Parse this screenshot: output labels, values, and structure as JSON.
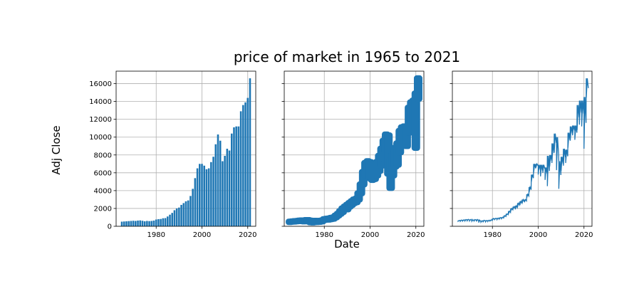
{
  "figure": {
    "title": "price of market in 1965 to 2021",
    "xlabel": "Date",
    "ylabel": "Adj Close"
  },
  "colors": {
    "series": "#1f77b4",
    "grid": "#b0b0b0",
    "axes": "#000000"
  },
  "chart_data": [
    {
      "type": "bar",
      "title": "",
      "xlim": [
        1962.5,
        2023.5
      ],
      "ylim": [
        0,
        17400
      ],
      "xticks": [
        1980,
        2000,
        2020
      ],
      "yticks": [
        0,
        2000,
        4000,
        6000,
        8000,
        10000,
        12000,
        14000,
        16000
      ],
      "grid": true,
      "series": [
        {
          "x": [
            1965,
            1966,
            1967,
            1968,
            1969,
            1970,
            1971,
            1972,
            1973,
            1974,
            1975,
            1976,
            1977,
            1978,
            1979,
            1980,
            1981,
            1982,
            1983,
            1984,
            1985,
            1986,
            1987,
            1988,
            1989,
            1990,
            1991,
            1992,
            1993,
            1994,
            1995,
            1996,
            1997,
            1998,
            1999,
            2000,
            2001,
            2002,
            2003,
            2004,
            2005,
            2006,
            2007,
            2008,
            2009,
            2010,
            2011,
            2012,
            2013,
            2014,
            2015,
            2016,
            2017,
            2018,
            2019,
            2020,
            2021
          ],
          "y": [
            520,
            540,
            560,
            580,
            600,
            620,
            600,
            640,
            660,
            620,
            560,
            600,
            580,
            600,
            640,
            760,
            800,
            820,
            900,
            920,
            1100,
            1300,
            1500,
            1800,
            2000,
            2100,
            2400,
            2600,
            2800,
            2900,
            3400,
            4200,
            5400,
            6500,
            7000,
            7000,
            6800,
            6400,
            6500,
            7200,
            7800,
            9200,
            10300,
            9600,
            7300,
            7900,
            8700,
            8500,
            10400,
            11100,
            11200,
            11200,
            12900,
            13600,
            13900,
            14400,
            16600
          ]
        }
      ]
    },
    {
      "type": "scatter",
      "title": "",
      "xlim": [
        1962.5,
        2023.5
      ],
      "ylim": [
        0,
        17400
      ],
      "xticks": [
        1980,
        2000,
        2020
      ],
      "grid": true,
      "series": [
        {
          "x": [
            1965,
            1966,
            1967,
            1968,
            1969,
            1970,
            1971,
            1972,
            1973,
            1974,
            1975,
            1976,
            1977,
            1978,
            1979,
            1980,
            1981,
            1982,
            1983,
            1984,
            1985,
            1986,
            1987,
            1988,
            1989,
            1990,
            1991,
            1992,
            1993,
            1994,
            1995,
            1996,
            1997,
            1998,
            1999,
            2000,
            2001,
            2002,
            2003,
            2004,
            2005,
            2006,
            2007,
            2008,
            2009,
            2010,
            2011,
            2012,
            2013,
            2014,
            2015,
            2016,
            2017,
            2018,
            2019,
            2020,
            2021
          ],
          "ymin": [
            380,
            420,
            430,
            460,
            480,
            500,
            450,
            500,
            450,
            350,
            330,
            380,
            380,
            400,
            450,
            600,
            650,
            650,
            700,
            750,
            900,
            1100,
            1300,
            1500,
            1800,
            1800,
            2100,
            2300,
            2500,
            2600,
            2900,
            3600,
            4600,
            5600,
            6300,
            5300,
            5100,
            5200,
            5600,
            6100,
            6700,
            7500,
            8300,
            5800,
            4200,
            5600,
            6600,
            6800,
            8200,
            9100,
            9100,
            8900,
            10400,
            11400,
            11600,
            8700,
            14200
          ],
          "ymax": [
            620,
            650,
            680,
            700,
            740,
            760,
            720,
            800,
            800,
            740,
            660,
            720,
            700,
            720,
            760,
            900,
            950,
            980,
            1050,
            1100,
            1300,
            1500,
            1800,
            2100,
            2300,
            2500,
            2700,
            2900,
            3100,
            3200,
            3800,
            4800,
            6200,
            7200,
            7400,
            7300,
            7100,
            7000,
            7300,
            8000,
            8800,
            9700,
            10400,
            10300,
            7500,
            8200,
            8900,
            9400,
            10800,
            11200,
            11300,
            11300,
            13400,
            14000,
            14200,
            15000,
            16700
          ]
        }
      ]
    },
    {
      "type": "line",
      "title": "",
      "xlim": [
        1962.5,
        2023.5
      ],
      "ylim": [
        0,
        17400
      ],
      "xticks": [
        1980,
        2000,
        2020
      ],
      "grid": true,
      "series": [
        {
          "x": [
            1965,
            1966,
            1967,
            1968,
            1969,
            1970,
            1971,
            1972,
            1973,
            1974,
            1975,
            1976,
            1977,
            1978,
            1979,
            1980,
            1981,
            1982,
            1983,
            1984,
            1985,
            1986,
            1987,
            1988,
            1989,
            1990,
            1991,
            1992,
            1993,
            1994,
            1995,
            1996,
            1997,
            1998,
            1999,
            2000,
            2001,
            2002,
            2003,
            2004,
            2005,
            2006,
            2007,
            2008,
            2009,
            2010,
            2011,
            2012,
            2013,
            2014,
            2015,
            2016,
            2017,
            2018,
            2019,
            2020,
            2021
          ],
          "ymin": [
            560,
            560,
            580,
            600,
            620,
            600,
            560,
            600,
            540,
            420,
            460,
            520,
            500,
            540,
            600,
            700,
            760,
            760,
            820,
            860,
            1000,
            1200,
            1400,
            1700,
            1900,
            1900,
            2200,
            2400,
            2600,
            2700,
            3200,
            3800,
            5000,
            6000,
            6600,
            5800,
            5600,
            6000,
            5200,
            4500,
            6700,
            7100,
            8300,
            6300,
            4200,
            6200,
            6800,
            7100,
            8800,
            9600,
            10200,
            9700,
            10800,
            11400,
            11200,
            8700,
            14400
          ],
          "ymax": [
            660,
            700,
            720,
            760,
            780,
            760,
            720,
            760,
            760,
            680,
            620,
            680,
            660,
            680,
            720,
            880,
            900,
            920,
            980,
            1020,
            1200,
            1400,
            1700,
            2000,
            2200,
            2300,
            2600,
            2800,
            3000,
            3000,
            3600,
            4400,
            5800,
            7000,
            7000,
            6900,
            6900,
            6900,
            6600,
            7900,
            8000,
            9300,
            10400,
            10000,
            7300,
            7800,
            8700,
            8600,
            10500,
            11200,
            11300,
            11300,
            13600,
            14100,
            14100,
            14500,
            16600
          ]
        }
      ]
    }
  ]
}
